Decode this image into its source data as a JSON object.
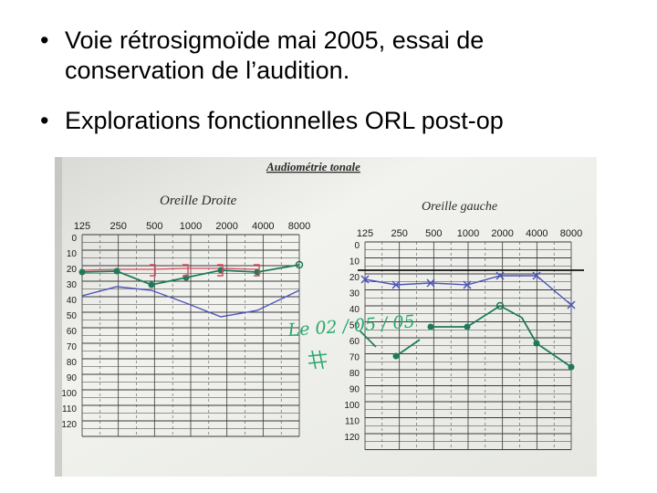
{
  "slide": {
    "bullets": [
      {
        "marker": "•",
        "lines": [
          "Voie rétrosigmoïde mai 2005, essai de",
          "conservation de l’audition."
        ]
      },
      {
        "marker": "•",
        "lines": [
          "Explorations fonctionnelles ORL post-op"
        ]
      }
    ]
  },
  "photo": {
    "header": "Audiométrie tonale",
    "right_ear": {
      "title": "Oreille Droite",
      "frequencies": [
        "125",
        "250",
        "500",
        "1000",
        "2000",
        "4000",
        "8000"
      ],
      "db_levels": [
        "0",
        "10",
        "20",
        "30",
        "40",
        "50",
        "60",
        "70",
        "80",
        "90",
        "100",
        "110",
        "120"
      ]
    },
    "left_ear": {
      "title": "Oreille gauche",
      "frequencies": [
        "125",
        "250",
        "500",
        "1000",
        "2000",
        "4000",
        "8000"
      ],
      "db_levels": [
        "0",
        "10",
        "20",
        "30",
        "40",
        "50",
        "60",
        "70",
        "80",
        "90",
        "100",
        "110",
        "120"
      ],
      "annotation": "Le 02 / 05 / 05"
    },
    "colors": {
      "paper": "#f0f1ee",
      "grid": "#3a3a3a",
      "green_trace": "#1e7a5a",
      "blue_trace": "#4b55b8",
      "red_trace": "#d94a5a",
      "annotation_ink": "#2aa86a"
    }
  }
}
